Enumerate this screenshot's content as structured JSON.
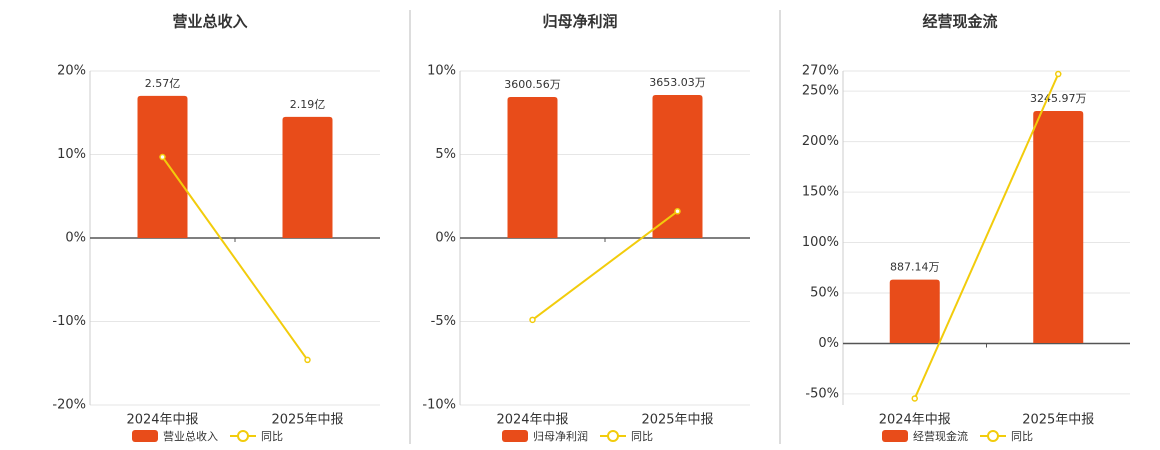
{
  "chart_data": [
    {
      "type": "combo",
      "title": "营业总收入",
      "categories": [
        "2024年中报",
        "2025年中报"
      ],
      "ylim": [
        -20,
        20
      ],
      "yticks": [
        {
          "value": -20,
          "label": "-20%"
        },
        {
          "value": -10,
          "label": "-10%"
        },
        {
          "value": 0,
          "label": "0%"
        },
        {
          "value": 10,
          "label": "10%"
        },
        {
          "value": 20,
          "label": "20%"
        }
      ],
      "y2lim": [
        -3.02,
        3.02
      ],
      "grid": true,
      "series": [
        {
          "name": "营业总收入",
          "type": "bar",
          "axis": "y2",
          "color": "#e84c1a",
          "values": [
            2.57,
            2.19
          ],
          "value_labels": [
            "2.57亿",
            "2.19亿"
          ]
        },
        {
          "name": "同比",
          "type": "line",
          "color": "#f2cc0c",
          "values": [
            9.7,
            -14.6
          ]
        }
      ]
    },
    {
      "type": "combo",
      "title": "归母净利润",
      "categories": [
        "2024年中报",
        "2025年中报"
      ],
      "ylim": [
        -10,
        10
      ],
      "yticks": [
        {
          "value": -10,
          "label": "-10%"
        },
        {
          "value": -5,
          "label": "-5%"
        },
        {
          "value": 0,
          "label": "0%"
        },
        {
          "value": 5,
          "label": "5%"
        },
        {
          "value": 10,
          "label": "10%"
        }
      ],
      "y2lim": [
        -4265,
        4265
      ],
      "grid": true,
      "series": [
        {
          "name": "归母净利润",
          "type": "bar",
          "axis": "y2",
          "color": "#e84c1a",
          "values": [
            3600.56,
            3653.03
          ],
          "value_labels": [
            "3600.56万",
            "3653.03万"
          ]
        },
        {
          "name": "同比",
          "type": "line",
          "color": "#f2cc0c",
          "values": [
            -4.9,
            1.6
          ]
        }
      ]
    },
    {
      "type": "combo",
      "title": "经营现金流",
      "categories": [
        "2024年中报",
        "2025年中报"
      ],
      "ylim": [
        -61,
        270
      ],
      "yticks": [
        {
          "value": -50,
          "label": "-50%"
        },
        {
          "value": 0,
          "label": "0%"
        },
        {
          "value": 50,
          "label": "50%"
        },
        {
          "value": 100,
          "label": "100%"
        },
        {
          "value": 150,
          "label": "150%"
        },
        {
          "value": 200,
          "label": "200%"
        },
        {
          "value": 250,
          "label": "250%"
        },
        {
          "value": 270,
          "label": "270%"
        }
      ],
      "y2lim": [
        -867,
        3806
      ],
      "grid": true,
      "series": [
        {
          "name": "经营现金流",
          "type": "bar",
          "axis": "y2",
          "color": "#e84c1a",
          "values": [
            887.14,
            3245.97
          ],
          "value_labels": [
            "887.14万",
            "3245.97万"
          ]
        },
        {
          "name": "同比",
          "type": "line",
          "color": "#f2cc0c",
          "values": [
            -54.5,
            267
          ]
        }
      ]
    }
  ]
}
